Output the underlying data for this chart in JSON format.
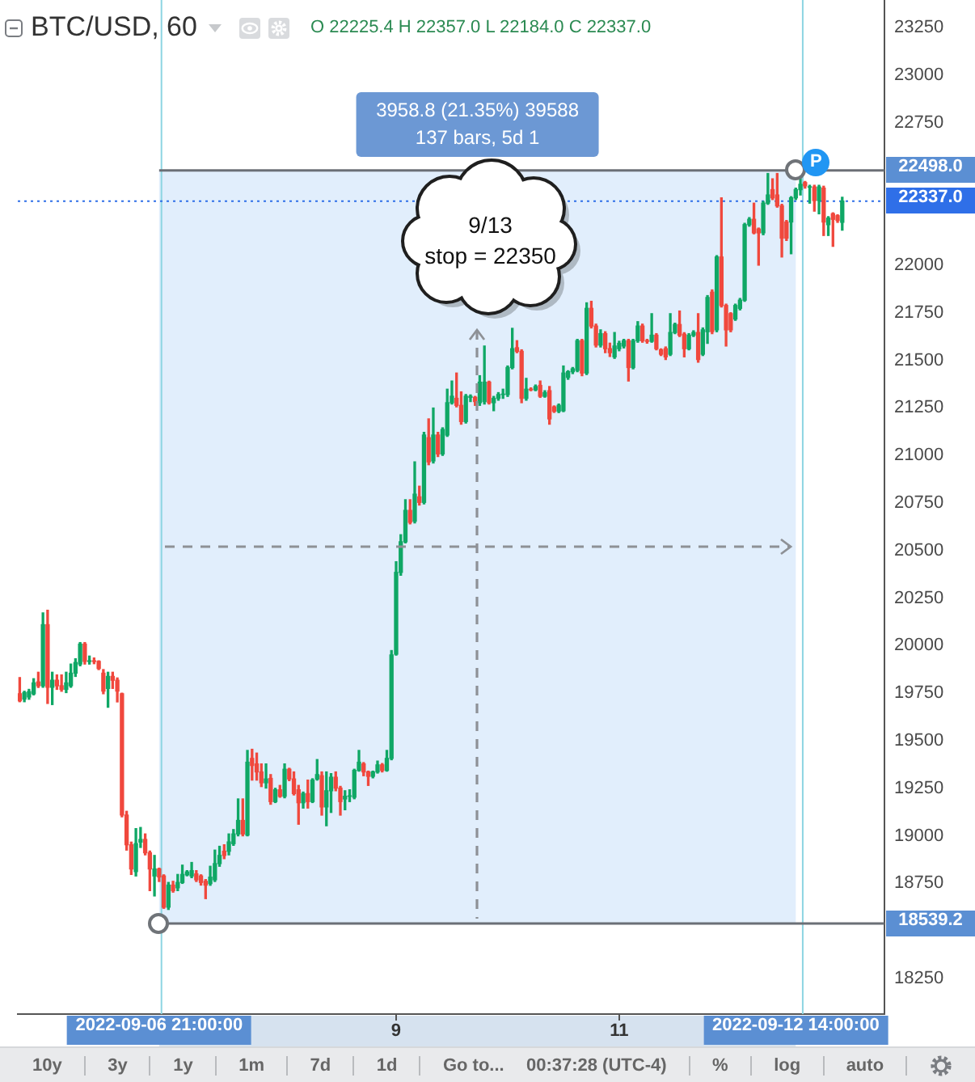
{
  "chart_data": {
    "type": "candlestick",
    "title": "BTC/USD, 60",
    "subtitle": "O 22225.4 H 22357.0 L 22184.0 C 22337.0",
    "x": [
      "2022-09-05T15:00",
      "2022-09-05T16:00",
      "2022-09-05T17:00",
      "2022-09-05T18:00",
      "2022-09-05T19:00",
      "2022-09-05T20:00",
      "2022-09-05T21:00",
      "2022-09-05T22:00",
      "2022-09-05T23:00",
      "2022-09-06T00:00",
      "2022-09-06T01:00",
      "2022-09-06T02:00",
      "2022-09-06T03:00",
      "2022-09-06T04:00",
      "2022-09-06T05:00",
      "2022-09-06T06:00",
      "2022-09-06T07:00",
      "2022-09-06T08:00",
      "2022-09-06T09:00",
      "2022-09-06T10:00",
      "2022-09-06T11:00",
      "2022-09-06T12:00",
      "2022-09-06T13:00",
      "2022-09-06T14:00",
      "2022-09-06T15:00",
      "2022-09-06T16:00",
      "2022-09-06T17:00",
      "2022-09-06T18:00",
      "2022-09-06T19:00",
      "2022-09-06T20:00",
      "2022-09-06T21:00",
      "2022-09-06T22:00",
      "2022-09-06T23:00",
      "2022-09-07T00:00",
      "2022-09-07T01:00",
      "2022-09-07T02:00",
      "2022-09-07T03:00",
      "2022-09-07T04:00",
      "2022-09-07T05:00",
      "2022-09-07T06:00",
      "2022-09-07T07:00",
      "2022-09-07T08:00",
      "2022-09-07T09:00",
      "2022-09-07T10:00",
      "2022-09-07T11:00",
      "2022-09-07T12:00",
      "2022-09-07T13:00",
      "2022-09-07T14:00",
      "2022-09-07T15:00",
      "2022-09-07T16:00",
      "2022-09-07T17:00",
      "2022-09-07T18:00",
      "2022-09-07T19:00",
      "2022-09-07T20:00",
      "2022-09-07T21:00",
      "2022-09-07T22:00",
      "2022-09-07T23:00",
      "2022-09-08T00:00",
      "2022-09-08T01:00",
      "2022-09-08T02:00",
      "2022-09-08T03:00",
      "2022-09-08T04:00",
      "2022-09-08T05:00",
      "2022-09-08T06:00",
      "2022-09-08T07:00",
      "2022-09-08T08:00",
      "2022-09-08T09:00",
      "2022-09-08T10:00",
      "2022-09-08T11:00",
      "2022-09-08T12:00",
      "2022-09-08T13:00",
      "2022-09-08T14:00",
      "2022-09-08T15:00",
      "2022-09-08T16:00",
      "2022-09-08T17:00",
      "2022-09-08T18:00",
      "2022-09-08T19:00",
      "2022-09-08T20:00",
      "2022-09-08T21:00",
      "2022-09-08T22:00",
      "2022-09-08T23:00",
      "2022-09-09T00:00",
      "2022-09-09T01:00",
      "2022-09-09T02:00",
      "2022-09-09T03:00",
      "2022-09-09T04:00",
      "2022-09-09T05:00",
      "2022-09-09T06:00",
      "2022-09-09T07:00",
      "2022-09-09T08:00",
      "2022-09-09T09:00",
      "2022-09-09T10:00",
      "2022-09-09T11:00",
      "2022-09-09T12:00",
      "2022-09-09T13:00",
      "2022-09-09T14:00",
      "2022-09-09T15:00",
      "2022-09-09T16:00",
      "2022-09-09T17:00",
      "2022-09-09T18:00",
      "2022-09-09T19:00",
      "2022-09-09T20:00",
      "2022-09-09T21:00",
      "2022-09-09T22:00",
      "2022-09-09T23:00",
      "2022-09-10T00:00",
      "2022-09-10T01:00",
      "2022-09-10T02:00",
      "2022-09-10T03:00",
      "2022-09-10T04:00",
      "2022-09-10T05:00",
      "2022-09-10T06:00",
      "2022-09-10T07:00",
      "2022-09-10T08:00",
      "2022-09-10T09:00",
      "2022-09-10T10:00",
      "2022-09-10T11:00",
      "2022-09-10T12:00",
      "2022-09-10T13:00",
      "2022-09-10T14:00",
      "2022-09-10T15:00",
      "2022-09-10T16:00",
      "2022-09-10T17:00",
      "2022-09-10T18:00",
      "2022-09-10T19:00",
      "2022-09-10T20:00",
      "2022-09-10T21:00",
      "2022-09-10T22:00",
      "2022-09-10T23:00",
      "2022-09-11T00:00",
      "2022-09-11T01:00",
      "2022-09-11T02:00",
      "2022-09-11T03:00",
      "2022-09-11T04:00",
      "2022-09-11T05:00",
      "2022-09-11T06:00",
      "2022-09-11T07:00",
      "2022-09-11T08:00",
      "2022-09-11T09:00",
      "2022-09-11T10:00",
      "2022-09-11T11:00",
      "2022-09-11T12:00",
      "2022-09-11T13:00",
      "2022-09-11T14:00",
      "2022-09-11T15:00",
      "2022-09-11T16:00",
      "2022-09-11T17:00",
      "2022-09-11T18:00",
      "2022-09-11T19:00",
      "2022-09-11T20:00",
      "2022-09-11T21:00",
      "2022-09-11T22:00",
      "2022-09-11T23:00",
      "2022-09-12T00:00",
      "2022-09-12T01:00",
      "2022-09-12T02:00",
      "2022-09-12T03:00",
      "2022-09-12T04:00",
      "2022-09-12T05:00",
      "2022-09-12T06:00",
      "2022-09-12T07:00",
      "2022-09-12T08:00",
      "2022-09-12T09:00",
      "2022-09-12T10:00",
      "2022-09-12T11:00",
      "2022-09-12T12:00",
      "2022-09-12T13:00",
      "2022-09-12T14:00",
      "2022-09-12T15:00",
      "2022-09-12T16:00",
      "2022-09-12T17:00",
      "2022-09-12T18:00",
      "2022-09-12T19:00",
      "2022-09-12T20:00",
      "2022-09-12T21:00",
      "2022-09-12T22:00",
      "2022-09-12T23:00",
      "2022-09-13T00:00"
    ],
    "ohlc": [
      [
        19747,
        19832,
        19705,
        19710
      ],
      [
        19719,
        19760,
        19705,
        19753
      ],
      [
        19730,
        19770,
        19718,
        19758
      ],
      [
        19747,
        19826,
        19741,
        19804
      ],
      [
        19809,
        19860,
        19780,
        19789
      ],
      [
        19789,
        20172,
        19781,
        20110
      ],
      [
        20110,
        20186,
        19696,
        19781
      ],
      [
        19781,
        19860,
        19690,
        19818
      ],
      [
        19818,
        19846,
        19770,
        19789
      ],
      [
        19789,
        19846,
        19760,
        19770
      ],
      [
        19770,
        19860,
        19753,
        19804
      ],
      [
        19789,
        19903,
        19781,
        19855
      ],
      [
        19855,
        19931,
        19838,
        19911
      ],
      [
        19903,
        20016,
        19894,
        20008
      ],
      [
        20008,
        20016,
        19903,
        19917
      ],
      [
        19917,
        19945,
        19903,
        19920
      ],
      [
        19920,
        19935,
        19905,
        19917
      ],
      [
        19917,
        19920,
        19874,
        19880
      ],
      [
        19855,
        19874,
        19747,
        19761
      ],
      [
        19775,
        19860,
        19676,
        19838
      ],
      [
        19838,
        19860,
        19775,
        19818
      ],
      [
        19818,
        19830,
        19704,
        19761
      ],
      [
        19747,
        19750,
        19100,
        19109
      ],
      [
        19109,
        19129,
        18925,
        18953
      ],
      [
        18953,
        18967,
        18797,
        18826
      ],
      [
        18812,
        19038,
        18789,
        18959
      ],
      [
        18967,
        19044,
        18939,
        18981
      ],
      [
        18981,
        19010,
        18900,
        18911
      ],
      [
        18911,
        18920,
        18712,
        18826
      ],
      [
        18789,
        18897,
        18684,
        18826
      ],
      [
        18826,
        18830,
        18760,
        18784
      ],
      [
        18789,
        18795,
        18619,
        18625
      ],
      [
        18625,
        18755,
        18613,
        18741
      ],
      [
        18741,
        18761,
        18704,
        18712
      ],
      [
        18727,
        18797,
        18712,
        18755
      ],
      [
        18755,
        18846,
        18750,
        18797
      ],
      [
        18795,
        18817,
        18790,
        18810
      ],
      [
        18789,
        18860,
        18780,
        18817
      ],
      [
        18800,
        18817,
        18760,
        18769
      ],
      [
        18789,
        18795,
        18741,
        18755
      ],
      [
        18761,
        18770,
        18670,
        18741
      ],
      [
        18749,
        18840,
        18740,
        18783
      ],
      [
        18769,
        18925,
        18760,
        18854
      ],
      [
        18854,
        18945,
        18840,
        18897
      ],
      [
        18919,
        18953,
        18880,
        18897
      ],
      [
        18919,
        19010,
        18900,
        18968
      ],
      [
        18959,
        19033,
        18950,
        19010
      ],
      [
        19010,
        19194,
        19000,
        19081
      ],
      [
        19081,
        19194,
        19000,
        19010
      ],
      [
        19004,
        19449,
        19000,
        19387
      ],
      [
        19407,
        19455,
        19293,
        19370
      ],
      [
        19378,
        19435,
        19293,
        19336
      ],
      [
        19336,
        19378,
        19259,
        19279
      ],
      [
        19279,
        19378,
        19251,
        19299
      ],
      [
        19302,
        19322,
        19166,
        19180
      ],
      [
        19180,
        19250,
        19175,
        19242
      ],
      [
        19242,
        19265,
        19203,
        19208
      ],
      [
        19208,
        19378,
        19200,
        19350
      ],
      [
        19350,
        19355,
        19290,
        19299
      ],
      [
        19299,
        19336,
        19215,
        19222
      ],
      [
        19242,
        19265,
        19061,
        19174
      ],
      [
        19174,
        19230,
        19146,
        19222
      ],
      [
        19222,
        19293,
        19146,
        19180
      ],
      [
        19180,
        19300,
        19175,
        19293
      ],
      [
        19299,
        19401,
        19293,
        19322
      ],
      [
        19316,
        19336,
        19109,
        19152
      ],
      [
        19152,
        19336,
        19053,
        19237
      ],
      [
        19237,
        19327,
        19123,
        19308
      ],
      [
        19308,
        19336,
        19237,
        19251
      ],
      [
        19251,
        19260,
        19109,
        19180
      ],
      [
        19194,
        19237,
        19137,
        19208
      ],
      [
        19208,
        19242,
        19180,
        19210
      ],
      [
        19203,
        19350,
        19195,
        19344
      ],
      [
        19344,
        19449,
        19340,
        19387
      ],
      [
        19378,
        19385,
        19316,
        19336
      ],
      [
        19336,
        19340,
        19265,
        19313
      ],
      [
        19313,
        19340,
        19305,
        19336
      ],
      [
        19336,
        19393,
        19330,
        19373
      ],
      [
        19373,
        19380,
        19336,
        19344
      ],
      [
        19344,
        19449,
        19340,
        19407
      ],
      [
        19407,
        19974,
        19400,
        19951
      ],
      [
        19955,
        20441,
        19950,
        20385
      ],
      [
        20385,
        20583,
        20370,
        20546
      ],
      [
        20546,
        20767,
        20540,
        20711
      ],
      [
        20711,
        20767,
        20640,
        20648
      ],
      [
        20654,
        20966,
        20645,
        20796
      ],
      [
        20782,
        20838,
        20739,
        20753
      ],
      [
        20753,
        21121,
        20745,
        21107
      ],
      [
        21093,
        21192,
        20951,
        20966
      ],
      [
        20971,
        21249,
        20960,
        21107
      ],
      [
        21107,
        21121,
        20994,
        21008
      ],
      [
        21008,
        21145,
        21000,
        21136
      ],
      [
        21107,
        21348,
        21100,
        21277
      ],
      [
        21277,
        21391,
        21270,
        21311
      ],
      [
        21300,
        21433,
        21255,
        21263
      ],
      [
        21263,
        21334,
        21164,
        21178
      ],
      [
        21178,
        21320,
        21170,
        21311
      ],
      [
        21305,
        21318,
        21283,
        21310
      ],
      [
        21305,
        21310,
        21263,
        21283
      ],
      [
        21277,
        21419,
        21263,
        21385
      ],
      [
        21283,
        21575,
        21270,
        21385
      ],
      [
        21385,
        21390,
        21270,
        21277
      ],
      [
        21277,
        21310,
        21235,
        21300
      ],
      [
        21300,
        21330,
        21290,
        21320
      ],
      [
        21320,
        21348,
        21300,
        21322
      ],
      [
        21320,
        21470,
        21310,
        21462
      ],
      [
        21462,
        21668,
        21455,
        21561
      ],
      [
        21566,
        21603,
        21540,
        21547
      ],
      [
        21547,
        21555,
        21277,
        21300
      ],
      [
        21300,
        21405,
        21290,
        21348
      ],
      [
        21348,
        21355,
        21340,
        21345
      ],
      [
        21345,
        21370,
        21340,
        21362
      ],
      [
        21368,
        21391,
        21305,
        21311
      ],
      [
        21311,
        21340,
        21306,
        21330
      ],
      [
        21340,
        21362,
        21164,
        21192
      ],
      [
        21255,
        21260,
        21226,
        21232
      ],
      [
        21232,
        21270,
        21225,
        21263
      ],
      [
        21235,
        21470,
        21230,
        21433
      ],
      [
        21410,
        21445,
        21400,
        21440
      ],
      [
        21440,
        21462,
        21430,
        21455
      ],
      [
        21447,
        21610,
        21440,
        21603
      ],
      [
        21603,
        21610,
        21419,
        21433
      ],
      [
        21433,
        21802,
        21425,
        21773
      ],
      [
        21773,
        21810,
        21670,
        21680
      ],
      [
        21680,
        21690,
        21570,
        21580
      ],
      [
        21580,
        21660,
        21570,
        21640
      ],
      [
        21640,
        21650,
        21540,
        21561
      ],
      [
        21561,
        21590,
        21520,
        21540
      ],
      [
        21518,
        21646,
        21510,
        21575
      ],
      [
        21561,
        21600,
        21550,
        21589
      ],
      [
        21575,
        21610,
        21565,
        21603
      ],
      [
        21603,
        21610,
        21391,
        21462
      ],
      [
        21462,
        21610,
        21455,
        21603
      ],
      [
        21603,
        21703,
        21595,
        21680
      ],
      [
        21680,
        21690,
        21595,
        21603
      ],
      [
        21603,
        21610,
        21590,
        21600
      ],
      [
        21600,
        21745,
        21595,
        21632
      ],
      [
        21632,
        21640,
        21555,
        21561
      ],
      [
        21555,
        21560,
        21525,
        21532
      ],
      [
        21561,
        21570,
        21504,
        21518
      ],
      [
        21532,
        21745,
        21525,
        21646
      ],
      [
        21646,
        21695,
        21640,
        21688
      ],
      [
        21688,
        21759,
        21625,
        21632
      ],
      [
        21637,
        21645,
        21518,
        21561
      ],
      [
        21561,
        21640,
        21555,
        21632
      ],
      [
        21632,
        21655,
        21625,
        21646
      ],
      [
        21646,
        21745,
        21490,
        21504
      ],
      [
        21532,
        21670,
        21525,
        21660
      ],
      [
        21650,
        21840,
        21589,
        21830
      ],
      [
        21858,
        21870,
        21640,
        21651
      ],
      [
        21660,
        22050,
        21650,
        22043
      ],
      [
        22043,
        22354,
        21780,
        21788
      ],
      [
        21788,
        21795,
        21575,
        21660
      ],
      [
        21745,
        21750,
        21650,
        21660
      ],
      [
        21717,
        21795,
        21710,
        21788
      ],
      [
        21773,
        21825,
        21765,
        21816
      ],
      [
        21816,
        22220,
        21810,
        22213
      ],
      [
        22213,
        22250,
        22205,
        22241
      ],
      [
        22241,
        22326,
        22165,
        22170
      ],
      [
        22190,
        22195,
        22000,
        22170
      ],
      [
        22170,
        22335,
        22160,
        22326
      ],
      [
        22326,
        22482,
        22320,
        22369
      ],
      [
        22397,
        22454,
        22345,
        22354
      ],
      [
        22369,
        22482,
        22305,
        22312
      ],
      [
        22312,
        22320,
        22043,
        22142
      ],
      [
        22227,
        22235,
        22130,
        22142
      ],
      [
        22227,
        22360,
        22060,
        22354
      ],
      [
        22354,
        22405,
        22345,
        22397
      ],
      [
        22397,
        22454,
        22369,
        22425
      ],
      [
        22434,
        22440,
        22405,
        22417
      ],
      [
        22410,
        22420,
        22326,
        22412
      ],
      [
        22411,
        22420,
        22284,
        22340
      ],
      [
        22340,
        22420,
        22270,
        22411
      ],
      [
        22405,
        22415,
        22156,
        22227
      ],
      [
        22213,
        22255,
        22156,
        22247
      ],
      [
        22270,
        22275,
        22099,
        22241
      ],
      [
        22260,
        22265,
        22225,
        22235
      ],
      [
        22225.4,
        22357.0,
        22184.0,
        22337.0
      ]
    ],
    "colors": [
      "#f0483d",
      "#0fa765",
      "#0fa765",
      "#0fa765",
      "#f0483d",
      "#0fa765",
      "#f0483d",
      "#0fa765",
      "#f0483d",
      "#f0483d",
      "#0fa765",
      "#0fa765",
      "#0fa765",
      "#0fa765",
      "#f0483d",
      "#0fa765",
      "#f0483d",
      "#f0483d",
      "#f0483d",
      "#0fa765",
      "#f0483d",
      "#f0483d",
      "#f0483d",
      "#f0483d",
      "#f0483d",
      "#0fa765",
      "#0fa765",
      "#f0483d",
      "#f0483d",
      "#0fa765",
      "#f0483d",
      "#f0483d",
      "#0fa765",
      "#f0483d",
      "#0fa765",
      "#0fa765",
      "#0fa765",
      "#0fa765",
      "#f0483d",
      "#f0483d",
      "#f0483d",
      "#0fa765",
      "#0fa765",
      "#0fa765",
      "#f0483d",
      "#0fa765",
      "#0fa765",
      "#0fa765",
      "#f0483d",
      "#0fa765",
      "#f0483d",
      "#f0483d",
      "#f0483d",
      "#0fa765",
      "#f0483d",
      "#0fa765",
      "#f0483d",
      "#0fa765",
      "#f0483d",
      "#f0483d",
      "#f0483d",
      "#0fa765",
      "#f0483d",
      "#0fa765",
      "#0fa765",
      "#f0483d",
      "#0fa765",
      "#0fa765",
      "#f0483d",
      "#f0483d",
      "#0fa765",
      "#0fa765",
      "#0fa765",
      "#0fa765",
      "#f0483d",
      "#f0483d",
      "#0fa765",
      "#0fa765",
      "#f0483d",
      "#0fa765",
      "#0fa765",
      "#0fa765",
      "#0fa765",
      "#0fa765",
      "#f0483d",
      "#0fa765",
      "#f0483d",
      "#0fa765",
      "#f0483d",
      "#0fa765",
      "#f0483d",
      "#0fa765",
      "#0fa765",
      "#0fa765",
      "#f0483d",
      "#f0483d",
      "#0fa765",
      "#0fa765",
      "#f0483d",
      "#0fa765",
      "#0fa765",
      "#f0483d",
      "#0fa765",
      "#0fa765",
      "#0fa765",
      "#0fa765",
      "#0fa765",
      "#f0483d",
      "#f0483d",
      "#0fa765",
      "#f0483d",
      "#0fa765",
      "#f0483d",
      "#0fa765",
      "#f0483d",
      "#f0483d",
      "#0fa765",
      "#0fa765",
      "#0fa765",
      "#0fa765",
      "#0fa765",
      "#f0483d",
      "#0fa765",
      "#f0483d",
      "#f0483d",
      "#0fa765",
      "#f0483d",
      "#f0483d",
      "#0fa765",
      "#0fa765",
      "#0fa765",
      "#f0483d",
      "#0fa765",
      "#0fa765",
      "#f0483d",
      "#f0483d",
      "#0fa765",
      "#f0483d",
      "#f0483d",
      "#f0483d",
      "#0fa765",
      "#0fa765",
      "#f0483d",
      "#f0483d",
      "#0fa765",
      "#0fa765",
      "#f0483d",
      "#0fa765",
      "#0fa765",
      "#f0483d",
      "#0fa765",
      "#f0483d",
      "#f0483d",
      "#f0483d",
      "#0fa765",
      "#0fa765",
      "#0fa765",
      "#0fa765",
      "#f0483d",
      "#f0483d",
      "#0fa765",
      "#0fa765",
      "#f0483d",
      "#f0483d",
      "#f0483d",
      "#f0483d",
      "#0fa765",
      "#0fa765",
      "#0fa765",
      "#f0483d",
      "#0fa765",
      "#f0483d",
      "#0fa765",
      "#f0483d",
      "#0fa765",
      "#f0483d",
      "#f0483d",
      "#0fa765"
    ],
    "xlim": [
      "2022-09-05T14:35",
      "2022-09-13T09:05"
    ],
    "xticks": [
      {
        "value": "2022-09-09",
        "label": "9"
      },
      {
        "value": "2022-09-11",
        "label": "11"
      }
    ],
    "ylim": [
      18063,
      23394
    ],
    "yticks": [
      18250,
      18750,
      19000,
      19250,
      19500,
      19750,
      20000,
      20250,
      20500,
      20750,
      21000,
      21250,
      21500,
      21750,
      22000,
      22750,
      23000,
      23250
    ],
    "bands": [
      {
        "axis": "x",
        "from": "2022-09-06T21:00",
        "to": "2022-09-12T14:00",
        "label": "3958.8 (21.35%) 39588\n137 bars, 5d 1",
        "color": "#e1eefc"
      }
    ],
    "ref_lines": [
      {
        "axis": "x",
        "value": "2022-09-06T21:30",
        "color": "#8dd5e2"
      },
      {
        "axis": "x",
        "value": "2022-09-12T15:30",
        "color": "#8dd5e2"
      },
      {
        "axis": "y",
        "value": 22498.0,
        "label": "22498.0",
        "color": "#6b6f76",
        "line_style": "solid"
      },
      {
        "axis": "y",
        "value": 18539.2,
        "label": "18539.2",
        "color": "#6b6f76",
        "line_style": "solid"
      },
      {
        "axis": "y",
        "value": 22337.0,
        "label": "22337.0",
        "color": "#2f6fe8",
        "line_style": "dotted"
      }
    ],
    "annotations": [
      "9/13\nstop = 22350",
      {
        "text": "P",
        "x": "2022-09-12T14:00",
        "y": 22498.0
      },
      "2022-09-06 21:00:00",
      "2022-09-12 14:00:00",
      "10y",
      "3y",
      "1y",
      "1m",
      "7d",
      "1d",
      "Go to...",
      "00:37:28 (UTC-4)",
      "%",
      "log",
      "auto"
    ]
  }
}
